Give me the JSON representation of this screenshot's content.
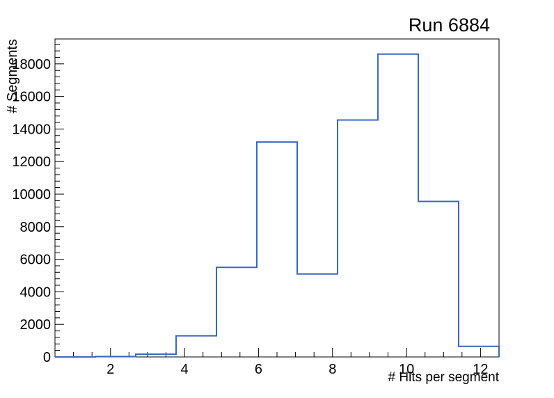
{
  "window": {
    "background": "#ffffff"
  },
  "chart_data": {
    "type": "bar",
    "subtype": "root-step-histogram",
    "title": "Run 6884",
    "xlabel": "# Hits per segment",
    "ylabel": "# Segments",
    "xlim": [
      0.5,
      12.5
    ],
    "ylim": [
      0,
      19530
    ],
    "n_bins": 11,
    "bin_edges": [
      0.5,
      1.591,
      2.682,
      3.773,
      4.864,
      5.955,
      7.045,
      8.136,
      9.227,
      10.318,
      11.409,
      12.5
    ],
    "counts": [
      0,
      25,
      170,
      1300,
      5500,
      13200,
      5100,
      14550,
      18600,
      9550,
      650
    ],
    "x_major_ticks": [
      2,
      4,
      6,
      8,
      10,
      12
    ],
    "x_minor_tick_step": 0.5,
    "y_major_ticks": [
      0,
      2000,
      4000,
      6000,
      8000,
      10000,
      12000,
      14000,
      16000,
      18000
    ],
    "y_minor_tick_step": 400,
    "grid": false,
    "legend": null,
    "line_color": "#3a67c2",
    "axis_color": "#000000"
  }
}
